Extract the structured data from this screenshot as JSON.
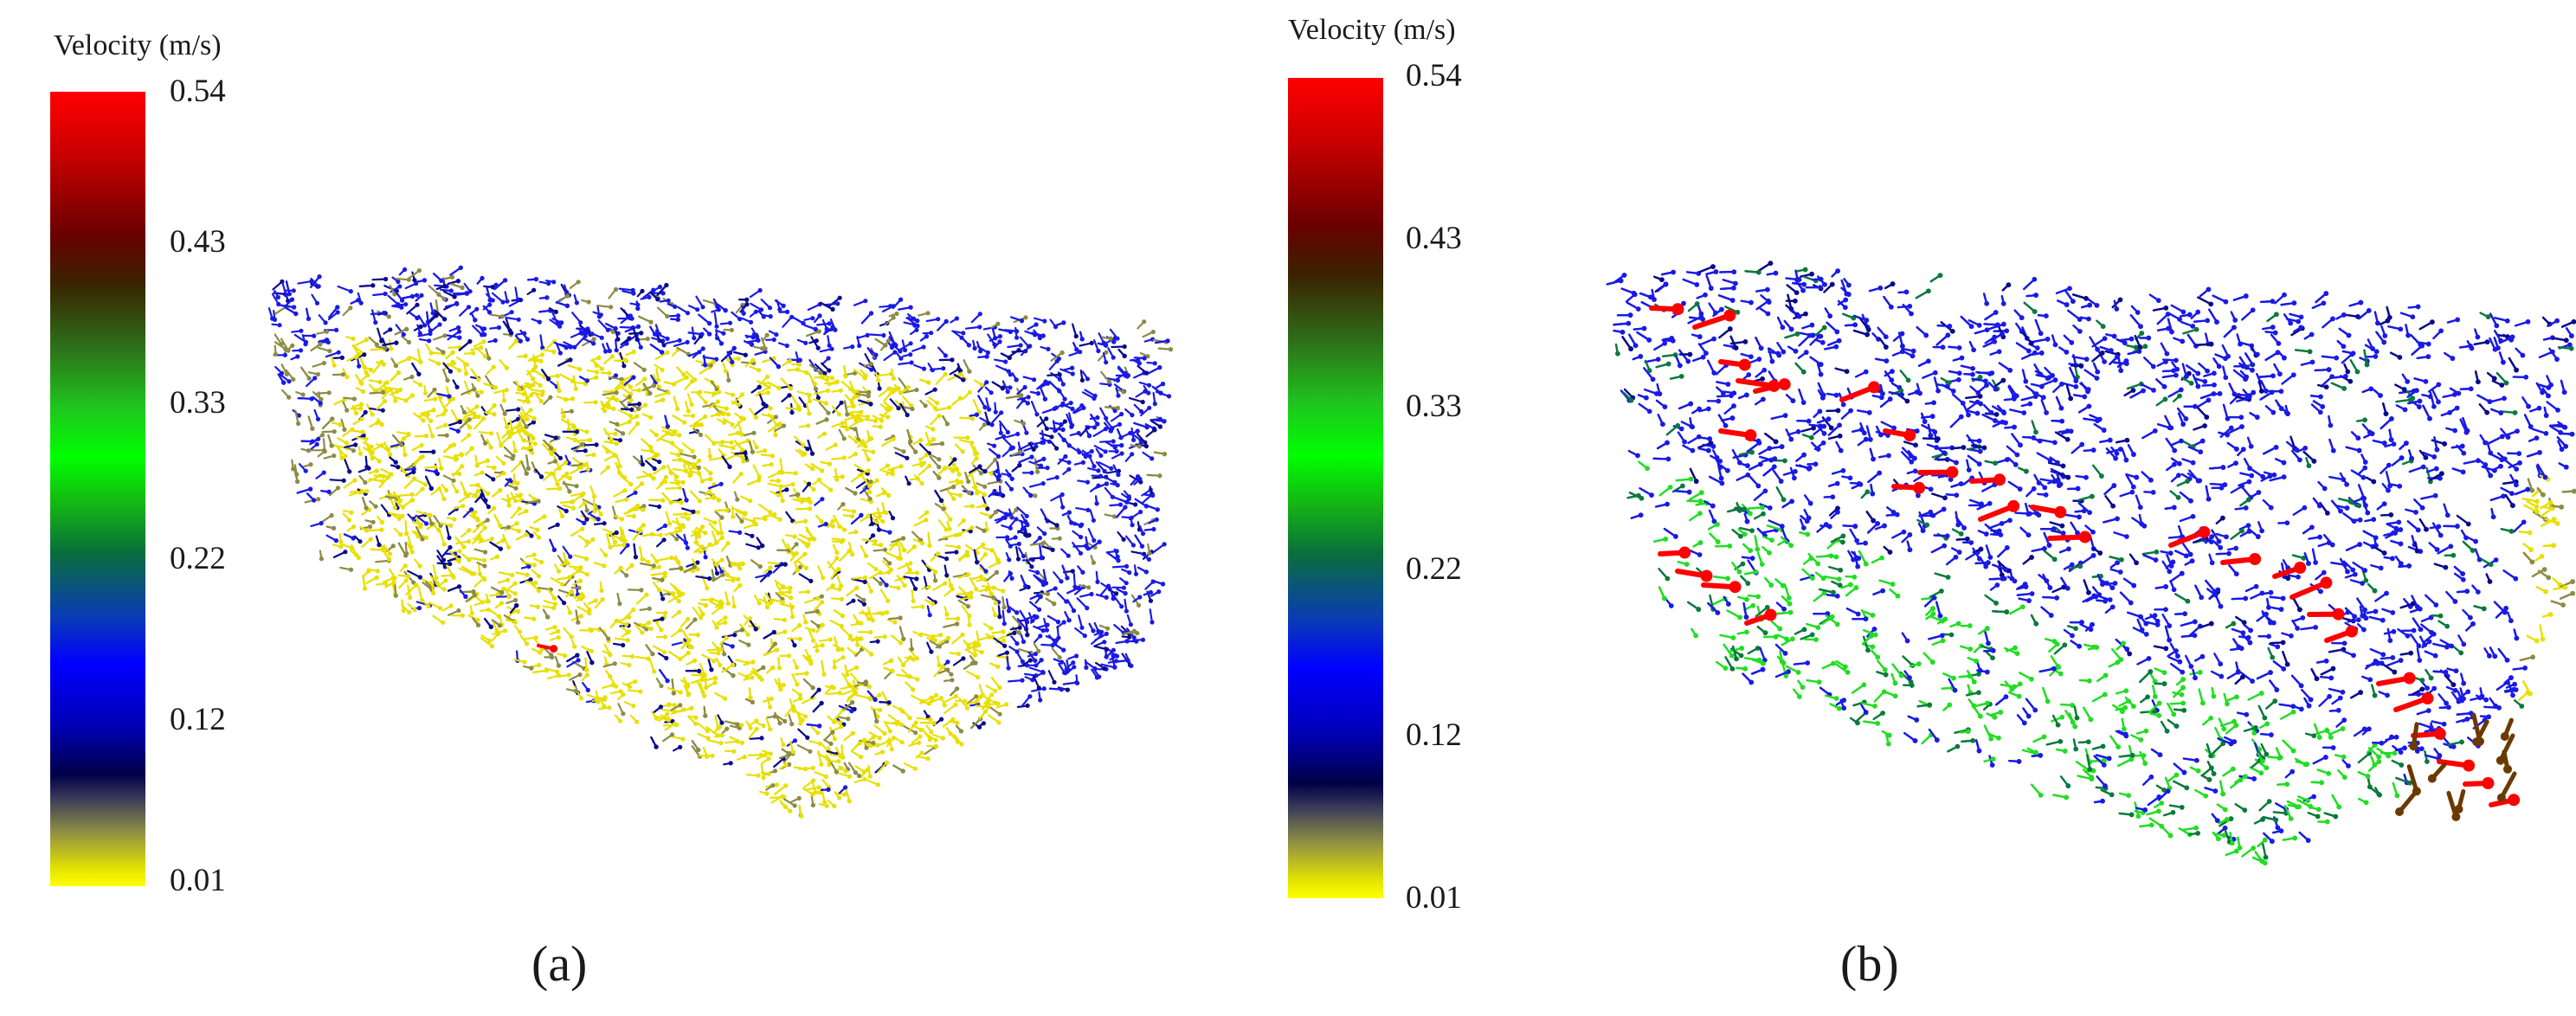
{
  "colorbar": {
    "title": "Velocity (m/s)",
    "ticks": [
      "0.54",
      "0.43",
      "0.33",
      "0.22",
      "0.12",
      "0.01"
    ],
    "range": [
      0.01,
      0.54
    ]
  },
  "panels": [
    {
      "label": "(a)",
      "field": {
        "dominant_color": "#e8e000",
        "secondary_color": "#1a1acc",
        "highlight_color": "#ff0000",
        "highlight_count": 1
      }
    },
    {
      "label": "(b)",
      "field": {
        "dominant_color": "#1a1aff",
        "secondary_color": "#22dd22",
        "highlight_color": "#ff0000",
        "highlight_count": 30
      }
    }
  ],
  "colors": {
    "blue": "#1a1ae6",
    "dark_blue": "#0a0a8c",
    "yellow": "#e8e000",
    "gray_olive": "#8c8c46",
    "green": "#22dd22",
    "dark_green": "#0a7a3c",
    "red": "#ff0000",
    "brown": "#6a3a00"
  }
}
